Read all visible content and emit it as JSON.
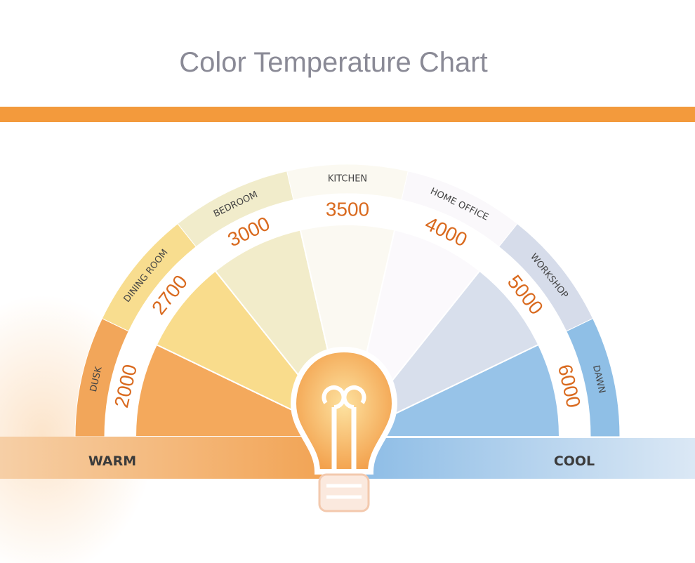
{
  "title": "Color Temperature Chart",
  "segments": [
    {
      "label": "DUSK",
      "value": 2000
    },
    {
      "label": "DINING ROOM",
      "value": 2700
    },
    {
      "label": "BEDROOM",
      "value": 3000
    },
    {
      "label": "KITCHEN",
      "value": 3500
    },
    {
      "label": "HOME OFFICE",
      "value": 4000
    },
    {
      "label": "WORKSHOP",
      "value": 5000
    },
    {
      "label": "DAWN",
      "value": 6000
    }
  ],
  "warm": "WARM",
  "cool": "COOL"
}
